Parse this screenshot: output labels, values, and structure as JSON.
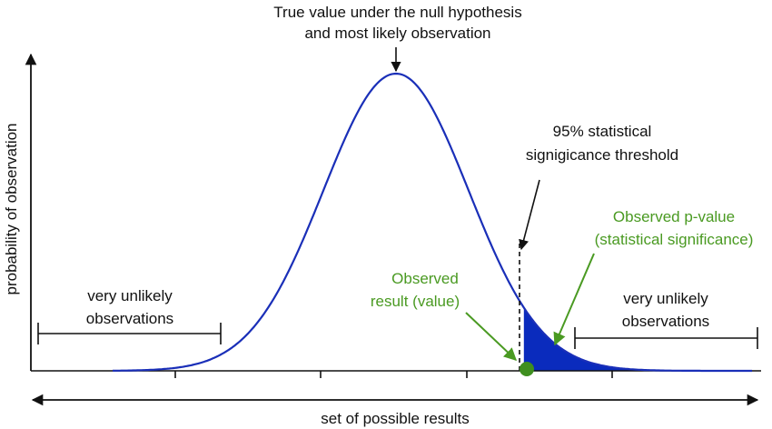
{
  "labels": {
    "peak_line1": "True value under the null hypothesis",
    "peak_line2": "and most likely observation",
    "threshold_line1": "95% statistical",
    "threshold_line2": "signigicance threshold",
    "pvalue_line1": "Observed p-value",
    "pvalue_line2": "(statistical significance)",
    "observed_line1": "Observed",
    "observed_line2": "result (value)",
    "left_tail_line1": "very unlikely",
    "left_tail_line2": "observations",
    "right_tail_line1": "very unlikely",
    "right_tail_line2": "observations",
    "y_axis": "probability of observation",
    "x_axis": "set of possible results"
  },
  "colors": {
    "curve": "#1a2fb8",
    "shaded_area": "#0a2bbd",
    "observed_marker": "#3f8f1f",
    "green_text": "#4a9a22",
    "black": "#111111"
  },
  "distribution": {
    "type": "normal",
    "mean": 0,
    "sd": 1,
    "x_range": [
      -3.9,
      4.9
    ],
    "threshold_z": 1.65,
    "observed_z": 1.76
  }
}
